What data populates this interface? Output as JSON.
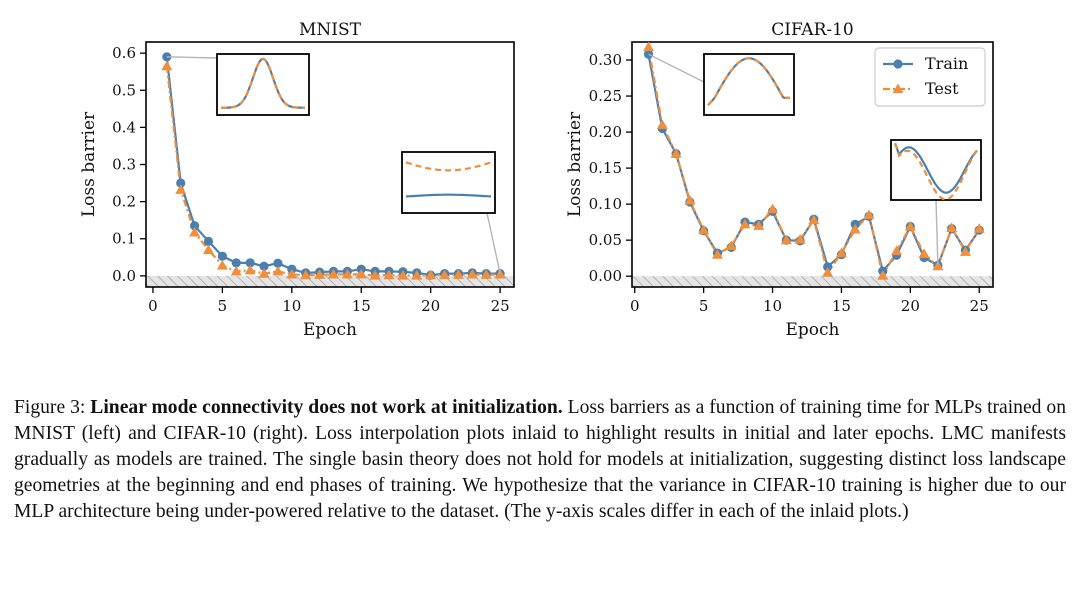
{
  "chart_data": [
    {
      "type": "line",
      "title": "MNIST",
      "xlabel": "Epoch",
      "ylabel": "Loss barrier",
      "xlim": [
        -0.5,
        26
      ],
      "ylim": [
        -0.03,
        0.63
      ],
      "xticks": [
        0,
        5,
        10,
        15,
        20,
        25
      ],
      "yticks": [
        0.0,
        0.1,
        0.2,
        0.3,
        0.4,
        0.5,
        0.6
      ],
      "ytick_labels": [
        "0.0",
        "0.1",
        "0.2",
        "0.3",
        "0.4",
        "0.5",
        "0.6"
      ],
      "x": [
        1,
        2,
        3,
        4,
        5,
        6,
        7,
        8,
        9,
        10,
        11,
        12,
        13,
        14,
        15,
        16,
        17,
        18,
        19,
        20,
        21,
        22,
        23,
        24,
        25
      ],
      "series": [
        {
          "name": "Train",
          "values": [
            0.59,
            0.25,
            0.135,
            0.093,
            0.053,
            0.035,
            0.035,
            0.026,
            0.034,
            0.018,
            0.008,
            0.01,
            0.012,
            0.012,
            0.018,
            0.012,
            0.012,
            0.011,
            0.008,
            0.002,
            0.006,
            0.006,
            0.008,
            0.006,
            0.006
          ]
        },
        {
          "name": "Test",
          "values": [
            0.565,
            0.232,
            0.117,
            0.07,
            0.028,
            0.012,
            0.015,
            0.006,
            0.012,
            0.004,
            0.002,
            0.003,
            0.004,
            0.004,
            0.004,
            0.001,
            0.002,
            0.001,
            0.001,
            0.002,
            0.002,
            0.003,
            0.004,
            0.003,
            0.004
          ]
        }
      ],
      "insets": [
        {
          "at_epoch": 1,
          "at_value": 0.59
        },
        {
          "at_epoch": 25,
          "at_value": 0.006
        }
      ]
    },
    {
      "type": "line",
      "title": "CIFAR-10",
      "xlabel": "Epoch",
      "ylabel": "Loss barrier",
      "xlim": [
        -0.2,
        26
      ],
      "ylim": [
        -0.015,
        0.325
      ],
      "xticks": [
        0,
        5,
        10,
        15,
        20,
        25
      ],
      "yticks": [
        0.0,
        0.05,
        0.1,
        0.15,
        0.2,
        0.25,
        0.3
      ],
      "ytick_labels": [
        "0.00",
        "0.05",
        "0.10",
        "0.15",
        "0.20",
        "0.25",
        "0.30"
      ],
      "legend": "top-right",
      "x": [
        1,
        2,
        3,
        4,
        5,
        6,
        7,
        8,
        9,
        10,
        11,
        12,
        13,
        14,
        15,
        16,
        17,
        18,
        19,
        20,
        21,
        22,
        23,
        24,
        25
      ],
      "series": [
        {
          "name": "Train",
          "values": [
            0.308,
            0.205,
            0.17,
            0.103,
            0.063,
            0.032,
            0.04,
            0.075,
            0.072,
            0.09,
            0.05,
            0.049,
            0.079,
            0.013,
            0.03,
            0.072,
            0.083,
            0.007,
            0.029,
            0.069,
            0.026,
            0.015,
            0.066,
            0.036,
            0.064
          ]
        },
        {
          "name": "Test",
          "values": [
            0.318,
            0.21,
            0.17,
            0.105,
            0.064,
            0.03,
            0.042,
            0.072,
            0.07,
            0.093,
            0.05,
            0.051,
            0.078,
            0.005,
            0.032,
            0.065,
            0.085,
            0.001,
            0.035,
            0.069,
            0.031,
            0.014,
            0.067,
            0.034,
            0.066
          ]
        }
      ],
      "insets": [
        {
          "at_epoch": 1,
          "at_value": 0.308
        },
        {
          "at_epoch": 22,
          "at_value": 0.015
        }
      ]
    }
  ],
  "colors": {
    "train": "#4a7fb0",
    "test": "#ef8e3b",
    "hatch": "#999999"
  },
  "caption": {
    "label": "Figure 3:",
    "bold": "Linear mode connectivity does not work at initialization.",
    "text": "Loss barriers as a function of training time for MLPs trained on MNIST (left) and CIFAR-10 (right). Loss interpolation plots inlaid to highlight results in initial and later epochs. LMC manifests gradually as models are trained. The single basin theory does not hold for models at initialization, suggesting distinct loss landscape geometries at the beginning and end phases of training. We hypothesize that the variance in CIFAR-10 training is higher due to our MLP architecture being under-powered relative to the dataset. (The y-axis scales differ in each of the inlaid plots.)"
  }
}
